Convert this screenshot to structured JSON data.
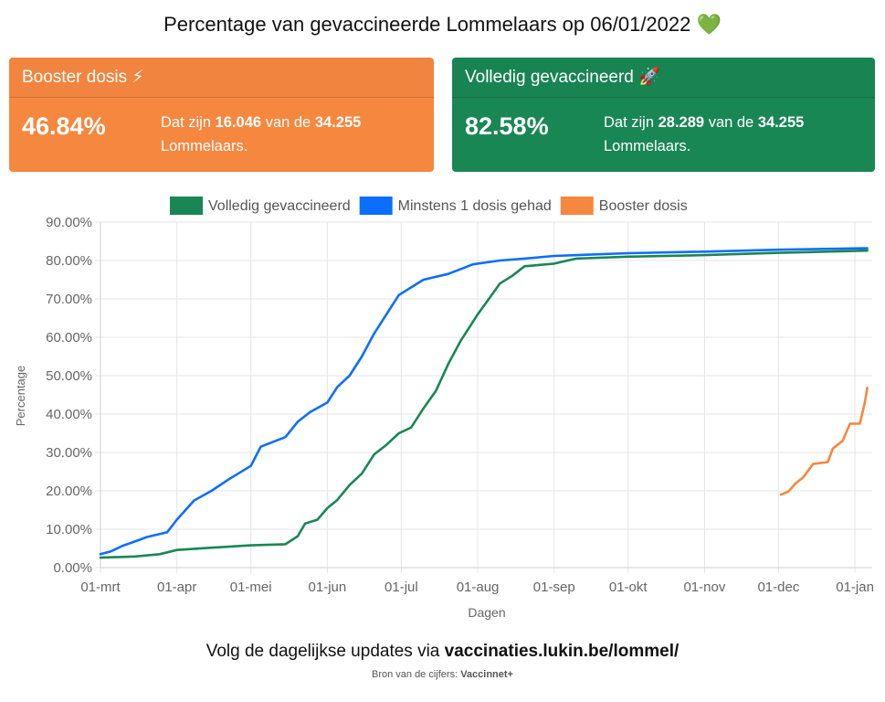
{
  "page": {
    "title": "Percentage van gevaccineerde Lommelaars op 06/01/2022",
    "title_emoji": "💚"
  },
  "cards": {
    "booster": {
      "title": "Booster dosis",
      "emoji": "⚡",
      "percentage": "46.84%",
      "text_prefix": "Dat zijn",
      "count": "16.046",
      "text_middle": "van de",
      "total": "34.255",
      "text_suffix": "Lommelaars.",
      "color": "#f5873f"
    },
    "full": {
      "title": "Volledig gevaccineerd",
      "emoji": "🚀",
      "percentage": "82.58%",
      "text_prefix": "Dat zijn",
      "count": "28.289",
      "text_middle": "van de",
      "total": "34.255",
      "text_suffix": "Lommelaars.",
      "color": "#198754"
    }
  },
  "chart_data": {
    "type": "line",
    "xlabel": "Dagen",
    "ylabel": "Percentage",
    "ylim": [
      0,
      90
    ],
    "yticks": [
      "0.00%",
      "10.00%",
      "20.00%",
      "30.00%",
      "40.00%",
      "50.00%",
      "60.00%",
      "70.00%",
      "80.00%",
      "90.00%"
    ],
    "xticks": [
      "01-mrt",
      "01-apr",
      "01-mei",
      "01-jun",
      "01-jul",
      "01-aug",
      "01-sep",
      "01-okt",
      "01-nov",
      "01-dec",
      "01-jan"
    ],
    "grid": true,
    "legend_position": "top",
    "series": [
      {
        "name": "Volledig gevaccineerd",
        "color": "#198754",
        "points": [
          [
            "2021-03-01",
            2.6
          ],
          [
            "2021-03-15",
            2.9
          ],
          [
            "2021-03-25",
            3.5
          ],
          [
            "2021-04-01",
            4.6
          ],
          [
            "2021-04-15",
            5.2
          ],
          [
            "2021-05-01",
            5.8
          ],
          [
            "2021-05-15",
            6.1
          ],
          [
            "2021-05-20",
            8.2
          ],
          [
            "2021-05-23",
            11.5
          ],
          [
            "2021-05-28",
            12.5
          ],
          [
            "2021-06-01",
            15.5
          ],
          [
            "2021-06-05",
            17.6
          ],
          [
            "2021-06-10",
            21.5
          ],
          [
            "2021-06-15",
            24.5
          ],
          [
            "2021-06-20",
            29.5
          ],
          [
            "2021-06-25",
            32.0
          ],
          [
            "2021-06-30",
            35.0
          ],
          [
            "2021-07-05",
            36.5
          ],
          [
            "2021-07-10",
            41.5
          ],
          [
            "2021-07-15",
            46.0
          ],
          [
            "2021-07-20",
            53.0
          ],
          [
            "2021-07-25",
            59.0
          ],
          [
            "2021-08-01",
            66.0
          ],
          [
            "2021-08-05",
            69.5
          ],
          [
            "2021-08-10",
            74.0
          ],
          [
            "2021-08-15",
            76.0
          ],
          [
            "2021-08-20",
            78.5
          ],
          [
            "2021-09-01",
            79.2
          ],
          [
            "2021-09-10",
            80.5
          ],
          [
            "2021-10-01",
            81.0
          ],
          [
            "2021-11-01",
            81.4
          ],
          [
            "2021-12-01",
            82.0
          ],
          [
            "2022-01-06",
            82.58
          ]
        ]
      },
      {
        "name": "Minstens 1 dosis gehad",
        "color": "#0d6efd",
        "points": [
          [
            "2021-03-01",
            3.5
          ],
          [
            "2021-03-05",
            4.2
          ],
          [
            "2021-03-10",
            5.7
          ],
          [
            "2021-03-15",
            6.8
          ],
          [
            "2021-03-20",
            8.0
          ],
          [
            "2021-03-28",
            9.2
          ],
          [
            "2021-04-01",
            12.5
          ],
          [
            "2021-04-08",
            17.5
          ],
          [
            "2021-04-15",
            20.0
          ],
          [
            "2021-04-22",
            23.0
          ],
          [
            "2021-05-01",
            26.5
          ],
          [
            "2021-05-05",
            31.5
          ],
          [
            "2021-05-15",
            34.0
          ],
          [
            "2021-05-20",
            38.0
          ],
          [
            "2021-05-25",
            40.5
          ],
          [
            "2021-06-01",
            43.0
          ],
          [
            "2021-06-05",
            47.0
          ],
          [
            "2021-06-10",
            50.0
          ],
          [
            "2021-06-15",
            55.0
          ],
          [
            "2021-06-20",
            61.0
          ],
          [
            "2021-06-25",
            66.0
          ],
          [
            "2021-06-30",
            71.0
          ],
          [
            "2021-07-05",
            73.0
          ],
          [
            "2021-07-10",
            75.0
          ],
          [
            "2021-07-20",
            76.5
          ],
          [
            "2021-07-30",
            79.0
          ],
          [
            "2021-08-10",
            80.0
          ],
          [
            "2021-08-20",
            80.5
          ],
          [
            "2021-09-01",
            81.2
          ],
          [
            "2021-10-01",
            81.9
          ],
          [
            "2021-11-01",
            82.3
          ],
          [
            "2021-12-01",
            82.8
          ],
          [
            "2022-01-06",
            83.2
          ]
        ]
      },
      {
        "name": "Booster dosis",
        "color": "#f5873f",
        "points": [
          [
            "2021-12-02",
            19.0
          ],
          [
            "2021-12-05",
            19.8
          ],
          [
            "2021-12-08",
            22.0
          ],
          [
            "2021-12-11",
            23.5
          ],
          [
            "2021-12-15",
            27.0
          ],
          [
            "2021-12-21",
            27.5
          ],
          [
            "2021-12-23",
            31.0
          ],
          [
            "2021-12-27",
            33.0
          ],
          [
            "2021-12-30",
            37.5
          ],
          [
            "2022-01-03",
            37.5
          ],
          [
            "2022-01-05",
            43.0
          ],
          [
            "2022-01-06",
            46.84
          ]
        ]
      }
    ]
  },
  "footer": {
    "text": "Volg de dagelijkse updates via",
    "link": "vaccinaties.lukin.be/lommel/"
  },
  "source": {
    "label": "Bron van de cijfers:",
    "value": "Vaccinnet+"
  }
}
